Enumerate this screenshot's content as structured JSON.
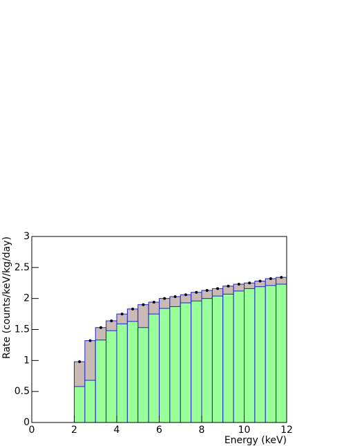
{
  "chart_data": {
    "type": "histogram",
    "xlabel": "Energy (keV)",
    "ylabel": "Rate (counts/keV/kg/day)",
    "bins": [
      2,
      2.5,
      3,
      3.5,
      4,
      4.5,
      5,
      5.5,
      6,
      6.5,
      7,
      7.5,
      8,
      8.5,
      9,
      9.5,
      10,
      10.5,
      11,
      11.5,
      12
    ],
    "series": [
      {
        "color": "#c9bab5",
        "values": [
          0.98,
          1.32,
          1.53,
          1.64,
          1.75,
          1.83,
          1.9,
          1.94,
          2.0,
          2.03,
          2.06,
          2.1,
          2.13,
          2.16,
          2.2,
          2.23,
          2.25,
          2.28,
          2.32,
          2.34
        ]
      },
      {
        "color": "#99ff99",
        "values": [
          0.58,
          0.68,
          1.33,
          1.48,
          1.59,
          1.63,
          1.53,
          1.75,
          1.84,
          1.87,
          1.93,
          1.96,
          2.0,
          2.04,
          2.07,
          2.12,
          2.16,
          2.19,
          2.21,
          2.23
        ]
      }
    ],
    "line_color": "#1f1fd0",
    "marker_color": "#000000",
    "xlim": [
      0,
      12
    ],
    "xticks": [
      0,
      2,
      4,
      6,
      8,
      10,
      12
    ],
    "ylim": [
      0,
      3
    ],
    "yticks": [
      0,
      {
        "value": 0.5,
        "label": "0.5"
      },
      1,
      {
        "value": 1.5,
        "label": "1.5"
      },
      2,
      {
        "value": 2.5,
        "label": "2.5"
      },
      3
    ]
  }
}
